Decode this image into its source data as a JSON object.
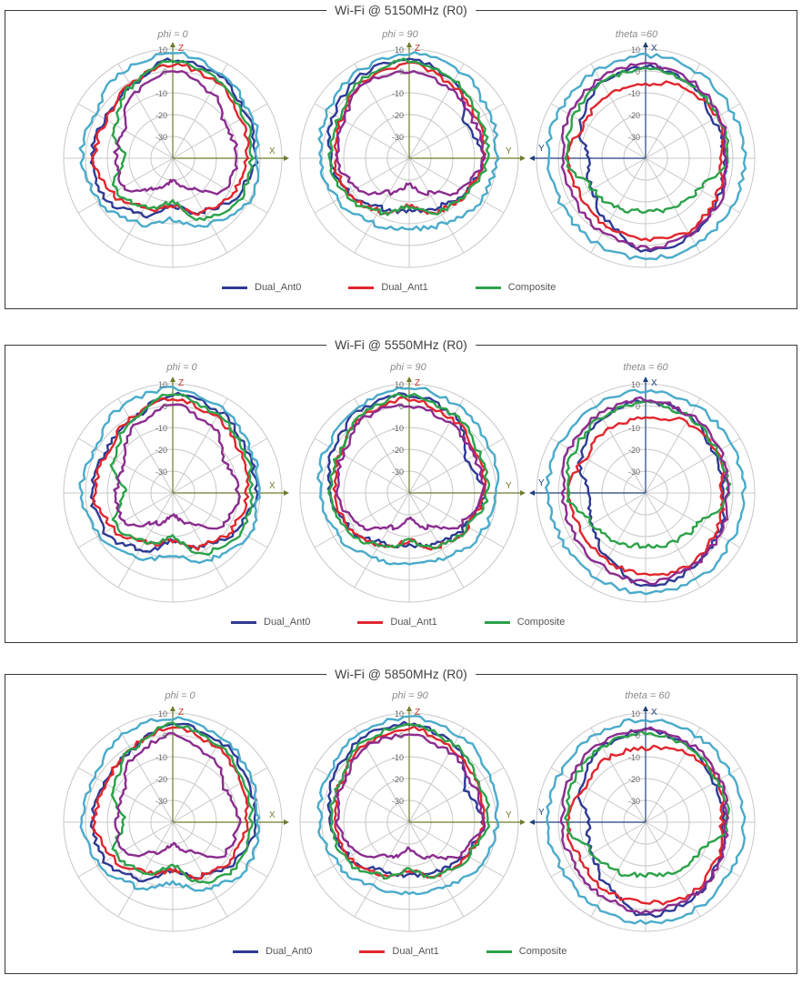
{
  "colors": {
    "dual_ant0": "#2e3a94",
    "dual_ant1": "#e1262e",
    "composite": "#2ca24a",
    "purple": "#8b2c8f",
    "cyan": "#4aabca",
    "grid": "#c8c8c8",
    "axis": "#6f7a2d"
  },
  "legend": [
    {
      "label": "Dual_Ant0",
      "color": "#2e3a94"
    },
    {
      "label": "Dual_Ant1",
      "color": "#e1262e"
    },
    {
      "label": "Composite",
      "color": "#2ca24a"
    }
  ],
  "panels": [
    {
      "title": "Wi-Fi @ 5150MHz (R0)",
      "plots": [
        {
          "subtitle": "phi = 0",
          "v_axis_label": "Z",
          "h_axis_label": "X",
          "h_axis_left_label": ""
        },
        {
          "subtitle": "phi = 90",
          "v_axis_label": "Z",
          "h_axis_label": "Y",
          "h_axis_left_label": ""
        },
        {
          "subtitle": "theta =60",
          "v_axis_label": "X",
          "h_axis_label": "",
          "h_axis_left_label": "Y"
        }
      ]
    },
    {
      "title": "Wi-Fi @ 5550MHz (R0)",
      "plots": [
        {
          "subtitle": "phi = 0",
          "v_axis_label": "Z",
          "h_axis_label": "X",
          "h_axis_left_label": ""
        },
        {
          "subtitle": "phi = 90",
          "v_axis_label": "Z",
          "h_axis_label": "Y",
          "h_axis_left_label": ""
        },
        {
          "subtitle": "theta = 60",
          "v_axis_label": "X",
          "h_axis_label": "",
          "h_axis_left_label": "Y"
        }
      ]
    },
    {
      "title": "Wi-Fi @ 5850MHz (R0)",
      "plots": [
        {
          "subtitle": "phi = 0",
          "v_axis_label": "Z",
          "h_axis_label": "X",
          "h_axis_left_label": ""
        },
        {
          "subtitle": "phi = 90",
          "v_axis_label": "Z",
          "h_axis_label": "Y",
          "h_axis_left_label": ""
        },
        {
          "subtitle": "theta = 60",
          "v_axis_label": "X",
          "h_axis_label": "",
          "h_axis_left_label": "Y"
        }
      ]
    }
  ],
  "chart_data": {
    "type": "polar",
    "radial_ticks": [
      "10",
      "0",
      "-10",
      "-20",
      "-30"
    ],
    "r_range": [
      -40,
      10
    ],
    "angle_step_deg": 30,
    "series_names": [
      "Dual_Ant0",
      "Dual_Ant1",
      "Composite"
    ],
    "patterns": [
      [
        {
          "name": "Dual_Ant0",
          "color": "#2e3a94",
          "angles": [
            0,
            30,
            60,
            90,
            120,
            150,
            180,
            210,
            240,
            270,
            300,
            330
          ],
          "values": [
            5,
            3,
            -1,
            -2,
            -6,
            -12,
            -18,
            -10,
            -4,
            -3,
            -4,
            -2
          ]
        },
        {
          "name": "Dual_Ant1",
          "color": "#e1262e",
          "angles": [
            0,
            30,
            60,
            90,
            120,
            150,
            180,
            210,
            240,
            270,
            300,
            330
          ],
          "values": [
            3,
            0,
            -4,
            -6,
            -8,
            -12,
            -18,
            -14,
            -8,
            -4,
            -5,
            -1
          ]
        },
        {
          "name": "Composite",
          "color": "#2ca24a",
          "angles": [
            0,
            30,
            60,
            90,
            120,
            150,
            180,
            210,
            240,
            270,
            300,
            330
          ],
          "values": [
            5,
            1,
            -2,
            -4,
            -4,
            -8,
            -20,
            -14,
            -10,
            -18,
            -9,
            -2
          ]
        },
        {
          "name": "",
          "color": "#8b2c8f",
          "angles": [
            0,
            30,
            60,
            90,
            120,
            150,
            180,
            210,
            240,
            270,
            300,
            330
          ],
          "values": [
            0,
            -5,
            -12,
            -10,
            -12,
            -24,
            -30,
            -24,
            -14,
            -14,
            -14,
            -5
          ]
        },
        {
          "name": "",
          "color": "#4aabca",
          "angles": [
            0,
            30,
            60,
            90,
            120,
            150,
            180,
            210,
            240,
            270,
            300,
            330
          ],
          "values": [
            8,
            5,
            1,
            -1,
            0,
            -5,
            -12,
            -6,
            -1,
            2,
            1,
            6
          ]
        }
      ],
      [
        {
          "name": "Dual_Ant0",
          "color": "#2e3a94",
          "angles": [
            0,
            30,
            60,
            90,
            120,
            150,
            180,
            210,
            240,
            270,
            300,
            330
          ],
          "values": [
            5,
            1,
            -10,
            -6,
            -10,
            -14,
            -16,
            -14,
            -8,
            -4,
            0,
            4
          ]
        },
        {
          "name": "Dual_Ant1",
          "color": "#e1262e",
          "angles": [
            0,
            30,
            60,
            90,
            120,
            150,
            180,
            210,
            240,
            270,
            300,
            330
          ],
          "values": [
            3,
            -1,
            -4,
            -6,
            -9,
            -12,
            -18,
            -12,
            -8,
            -6,
            -4,
            1
          ]
        },
        {
          "name": "Composite",
          "color": "#2ca24a",
          "angles": [
            0,
            30,
            60,
            90,
            120,
            150,
            180,
            210,
            240,
            270,
            300,
            330
          ],
          "values": [
            5,
            1,
            -3,
            -4,
            -9,
            -12,
            -18,
            -12,
            -6,
            -4,
            -3,
            2
          ]
        },
        {
          "name": "",
          "color": "#8b2c8f",
          "angles": [
            0,
            30,
            60,
            90,
            120,
            150,
            180,
            210,
            240,
            270,
            300,
            330
          ],
          "values": [
            0,
            -3,
            -6,
            -6,
            -12,
            -22,
            -28,
            -22,
            -12,
            -7,
            -5,
            0
          ]
        },
        {
          "name": "",
          "color": "#4aabca",
          "angles": [
            0,
            30,
            60,
            90,
            120,
            150,
            180,
            210,
            240,
            270,
            300,
            330
          ],
          "values": [
            8,
            6,
            2,
            0,
            -2,
            -6,
            -8,
            -6,
            -2,
            1,
            3,
            6
          ]
        }
      ],
      [
        {
          "name": "Dual_Ant0",
          "color": "#2e3a94",
          "angles": [
            0,
            30,
            60,
            90,
            120,
            150,
            180,
            210,
            240,
            270,
            300,
            330
          ],
          "values": [
            2,
            0,
            -4,
            -4,
            -2,
            1,
            3,
            -6,
            -12,
            -14,
            -6,
            0
          ]
        },
        {
          "name": "Dual_Ant1",
          "color": "#e1262e",
          "angles": [
            0,
            30,
            60,
            90,
            120,
            150,
            180,
            210,
            240,
            270,
            300,
            330
          ],
          "values": [
            -6,
            -3,
            -2,
            -5,
            -3,
            -1,
            -3,
            -4,
            -6,
            -4,
            -8,
            -6
          ]
        },
        {
          "name": "Composite",
          "color": "#2ca24a",
          "angles": [
            0,
            30,
            60,
            90,
            120,
            150,
            180,
            210,
            240,
            270,
            300,
            330
          ],
          "values": [
            1,
            0,
            -2,
            -2,
            -12,
            -14,
            -16,
            -14,
            -12,
            -4,
            -2,
            0
          ]
        },
        {
          "name": "",
          "color": "#8b2c8f",
          "angles": [
            0,
            30,
            60,
            90,
            120,
            150,
            180,
            210,
            240,
            270,
            300,
            330
          ],
          "values": [
            3,
            1,
            -1,
            -3,
            -1,
            0,
            1,
            -1,
            -2,
            -2,
            0,
            2
          ]
        },
        {
          "name": "",
          "color": "#4aabca",
          "angles": [
            0,
            30,
            60,
            90,
            120,
            150,
            180,
            210,
            240,
            270,
            300,
            330
          ],
          "values": [
            7,
            6,
            5,
            5,
            5,
            6,
            6,
            5,
            4,
            5,
            5,
            6
          ]
        }
      ]
    ]
  }
}
